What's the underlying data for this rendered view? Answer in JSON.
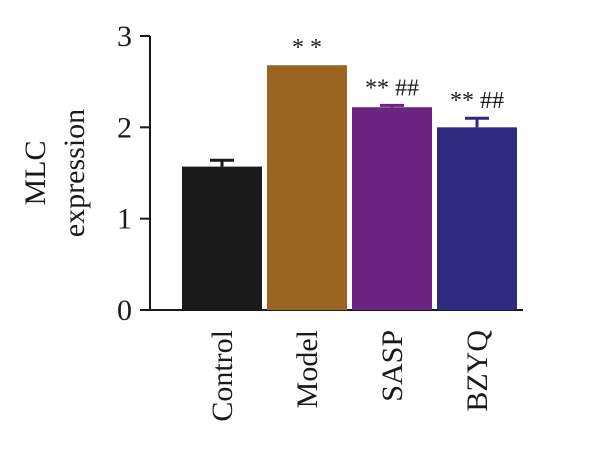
{
  "chart_data": {
    "type": "bar",
    "categories": [
      "Control",
      "Model",
      "SASP",
      "BZYQ"
    ],
    "values": [
      1.57,
      2.68,
      2.22,
      2.0
    ],
    "error": [
      0.07,
      0.0,
      0.02,
      0.1
    ],
    "colors": [
      "#1a1a1a",
      "#9a6523",
      "#6a237f",
      "#2e2a7f"
    ],
    "annotations": [
      "",
      "* *",
      "** ##",
      "** ##"
    ],
    "ylabel_lines": [
      "MLC",
      "expression"
    ],
    "ylim": [
      0,
      3
    ],
    "yticks": [
      0,
      1,
      2,
      3
    ],
    "grid": false,
    "legend": "none"
  }
}
